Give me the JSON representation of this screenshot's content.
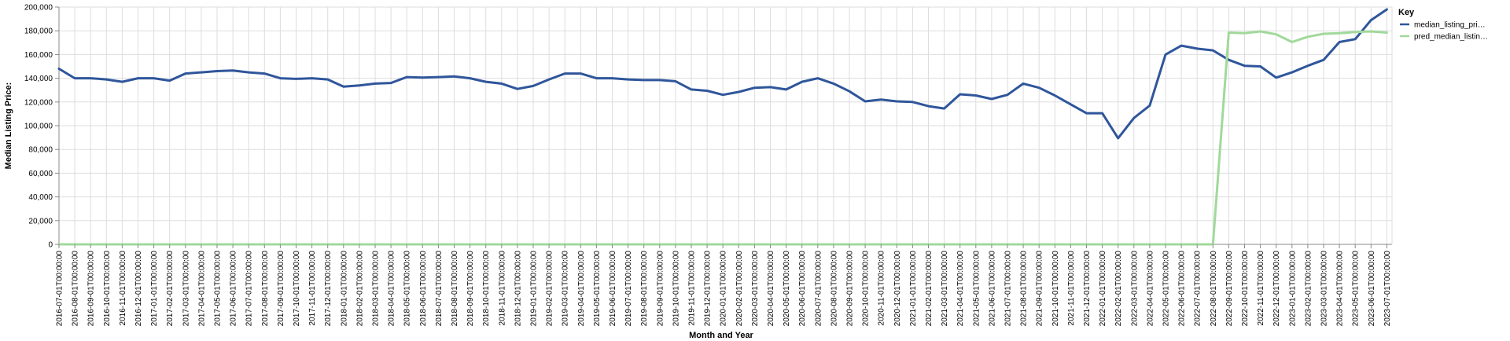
{
  "chart_data": {
    "type": "line",
    "xlabel": "Month and Year",
    "ylabel": "Median Listing Price:",
    "ylim": [
      0,
      200000
    ],
    "yticks": [
      0,
      20000,
      40000,
      60000,
      80000,
      100000,
      120000,
      140000,
      160000,
      180000,
      200000
    ],
    "ytick_labels": [
      "0",
      "20,000",
      "40,000",
      "60,000",
      "80,000",
      "100,000",
      "120,000",
      "140,000",
      "160,000",
      "180,000",
      "200,000"
    ],
    "grid": true,
    "legend_title": "Key",
    "legend_position": "right",
    "categories": [
      "2016-07-01T00:00:00",
      "2016-08-01T00:00:00",
      "2016-09-01T00:00:00",
      "2016-10-01T00:00:00",
      "2016-11-01T00:00:00",
      "2016-12-01T00:00:00",
      "2017-01-01T00:00:00",
      "2017-02-01T00:00:00",
      "2017-03-01T00:00:00",
      "2017-04-01T00:00:00",
      "2017-05-01T00:00:00",
      "2017-06-01T00:00:00",
      "2017-07-01T00:00:00",
      "2017-08-01T00:00:00",
      "2017-09-01T00:00:00",
      "2017-10-01T00:00:00",
      "2017-11-01T00:00:00",
      "2017-12-01T00:00:00",
      "2018-01-01T00:00:00",
      "2018-02-01T00:00:00",
      "2018-03-01T00:00:00",
      "2018-04-01T00:00:00",
      "2018-05-01T00:00:00",
      "2018-06-01T00:00:00",
      "2018-07-01T00:00:00",
      "2018-08-01T00:00:00",
      "2018-09-01T00:00:00",
      "2018-10-01T00:00:00",
      "2018-11-01T00:00:00",
      "2018-12-01T00:00:00",
      "2019-01-01T00:00:00",
      "2019-02-01T00:00:00",
      "2019-03-01T00:00:00",
      "2019-04-01T00:00:00",
      "2019-05-01T00:00:00",
      "2019-06-01T00:00:00",
      "2019-07-01T00:00:00",
      "2019-08-01T00:00:00",
      "2019-09-01T00:00:00",
      "2019-10-01T00:00:00",
      "2019-11-01T00:00:00",
      "2019-12-01T00:00:00",
      "2020-01-01T00:00:00",
      "2020-02-01T00:00:00",
      "2020-03-01T00:00:00",
      "2020-04-01T00:00:00",
      "2020-05-01T00:00:00",
      "2020-06-01T00:00:00",
      "2020-07-01T00:00:00",
      "2020-08-01T00:00:00",
      "2020-09-01T00:00:00",
      "2020-10-01T00:00:00",
      "2020-11-01T00:00:00",
      "2020-12-01T00:00:00",
      "2021-01-01T00:00:00",
      "2021-02-01T00:00:00",
      "2021-03-01T00:00:00",
      "2021-04-01T00:00:00",
      "2021-05-01T00:00:00",
      "2021-06-01T00:00:00",
      "2021-07-01T00:00:00",
      "2021-08-01T00:00:00",
      "2021-09-01T00:00:00",
      "2021-10-01T00:00:00",
      "2021-11-01T00:00:00",
      "2021-12-01T00:00:00",
      "2022-01-01T00:00:00",
      "2022-02-01T00:00:00",
      "2022-03-01T00:00:00",
      "2022-04-01T00:00:00",
      "2022-05-01T00:00:00",
      "2022-06-01T00:00:00",
      "2022-07-01T00:00:00",
      "2022-08-01T00:00:00",
      "2022-09-01T00:00:00",
      "2022-10-01T00:00:00",
      "2022-11-01T00:00:00",
      "2022-12-01T00:00:00",
      "2023-01-01T00:00:00",
      "2023-02-01T00:00:00",
      "2023-03-01T00:00:00",
      "2023-04-01T00:00:00",
      "2023-05-01T00:00:00",
      "2023-06-01T00:00:00",
      "2023-07-01T00:00:00"
    ],
    "series": [
      {
        "name": "median_listing_pri…",
        "color": "#2f569b",
        "values": [
          148000,
          140000,
          140000,
          139000,
          137000,
          140000,
          140000,
          138000,
          144000,
          145000,
          146000,
          146500,
          145000,
          144000,
          140000,
          139500,
          140000,
          139000,
          133000,
          134000,
          135500,
          136000,
          141000,
          140500,
          141000,
          141500,
          140000,
          137000,
          135500,
          131000,
          133500,
          139000,
          144000,
          144000,
          140000,
          140000,
          139000,
          138500,
          138500,
          137500,
          130500,
          129500,
          126000,
          128500,
          132000,
          132500,
          130500,
          137000,
          140000,
          135500,
          129000,
          120500,
          122000,
          120500,
          120000,
          116500,
          114500,
          126500,
          125500,
          122500,
          126000,
          135500,
          132000,
          125500,
          118000,
          110500,
          110500,
          89500,
          106500,
          117000,
          160000,
          167500,
          165000,
          163500,
          155500,
          150500,
          150000,
          140500,
          145000,
          150500,
          155500,
          170500,
          173000,
          189000,
          198000
        ]
      },
      {
        "name": "pred_median_listin…",
        "color": "#a1d99b",
        "values": [
          0,
          0,
          0,
          0,
          0,
          0,
          0,
          0,
          0,
          0,
          0,
          0,
          0,
          0,
          0,
          0,
          0,
          0,
          0,
          0,
          0,
          0,
          0,
          0,
          0,
          0,
          0,
          0,
          0,
          0,
          0,
          0,
          0,
          0,
          0,
          0,
          0,
          0,
          0,
          0,
          0,
          0,
          0,
          0,
          0,
          0,
          0,
          0,
          0,
          0,
          0,
          0,
          0,
          0,
          0,
          0,
          0,
          0,
          0,
          0,
          0,
          0,
          0,
          0,
          0,
          0,
          0,
          0,
          0,
          0,
          0,
          0,
          0,
          0,
          178500,
          178000,
          179500,
          177000,
          170500,
          175000,
          177500,
          178000,
          179000,
          179500,
          178500
        ]
      }
    ]
  }
}
